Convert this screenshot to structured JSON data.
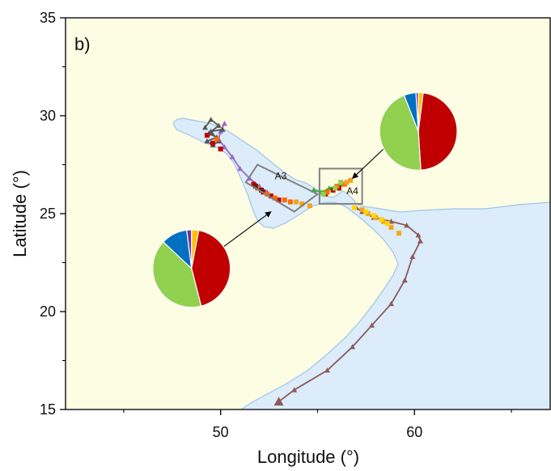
{
  "chart_data": {
    "type": "scatter",
    "panel_label": "b)",
    "xlabel": "Longitude (°)",
    "ylabel": "Latitude (°)",
    "xlim": [
      42,
      67
    ],
    "ylim": [
      15,
      35
    ],
    "x_major_ticks": [
      50,
      60
    ],
    "x_minor_ticks": [
      45,
      55,
      65
    ],
    "y_major_ticks": [
      15,
      20,
      25,
      30,
      35
    ],
    "colors": {
      "land": "#fdfde3",
      "sea": "#dcecfa",
      "coast": "#9cc6ea",
      "box": "#808080",
      "red": "#c00000",
      "green": "#92d050",
      "blue": "#0070c0",
      "purple": "#7030a0",
      "yellow": "#ffc000",
      "orange": "#f4a320"
    },
    "regions": [
      {
        "label": "A3",
        "corners": [
          [
            51.3,
            26.6
          ],
          [
            53.8,
            25.1
          ],
          [
            55.0,
            26.0
          ],
          [
            51.9,
            27.5
          ]
        ]
      },
      {
        "label": "A4",
        "corners": [
          [
            55.1,
            25.5
          ],
          [
            57.3,
            25.5
          ],
          [
            57.3,
            27.3
          ],
          [
            55.1,
            27.3
          ]
        ]
      }
    ],
    "pies": [
      {
        "region": "A3",
        "center": [
          48.5,
          22.2
        ],
        "radius_deg": 2.0,
        "slices": [
          {
            "color": "#ffc000",
            "value": 3
          },
          {
            "color": "#c00000",
            "value": 43
          },
          {
            "color": "#92d050",
            "value": 41
          },
          {
            "color": "#0070c0",
            "value": 11
          },
          {
            "color": "#7030a0",
            "value": 2
          }
        ]
      },
      {
        "region": "A4",
        "center": [
          60.2,
          29.2
        ],
        "radius_deg": 2.0,
        "slices": [
          {
            "color": "#ffc000",
            "value": 2
          },
          {
            "color": "#c00000",
            "value": 47
          },
          {
            "color": "#92d050",
            "value": 45
          },
          {
            "color": "#0070c0",
            "value": 5
          },
          {
            "color": "#7030a0",
            "value": 1
          }
        ]
      }
    ],
    "arrows": [
      {
        "from": [
          50.0,
          23.2
        ],
        "to": [
          52.6,
          25.1
        ]
      },
      {
        "from": [
          58.4,
          28.3
        ],
        "to": [
          56.8,
          26.8
        ]
      }
    ],
    "tracks": [
      {
        "color": "#8c5a5a",
        "marker": "triangle",
        "points": [
          [
            53.0,
            15.4
          ],
          [
            53.8,
            16.0
          ],
          [
            55.5,
            17.0
          ],
          [
            56.8,
            18.2
          ],
          [
            57.8,
            19.3
          ],
          [
            58.8,
            20.4
          ],
          [
            59.5,
            21.6
          ],
          [
            59.9,
            22.8
          ],
          [
            60.3,
            23.6
          ],
          [
            60.2,
            23.9
          ],
          [
            59.6,
            24.4
          ],
          [
            58.8,
            24.6
          ],
          [
            57.9,
            24.8
          ],
          [
            57.3,
            25.1
          ],
          [
            57.0,
            25.3
          ]
        ]
      },
      {
        "color": "#9a6ac8",
        "marker": "triangle",
        "points": [
          [
            50.2,
            29.6
          ],
          [
            50.0,
            29.2
          ],
          [
            49.9,
            28.8
          ],
          [
            50.2,
            28.4
          ],
          [
            50.6,
            27.9
          ],
          [
            51.0,
            27.3
          ],
          [
            51.5,
            26.8
          ],
          [
            52.0,
            26.4
          ],
          [
            52.4,
            26.1
          ]
        ]
      },
      {
        "color": "#555555",
        "marker": "triangle",
        "points": [
          [
            49.2,
            29.4
          ],
          [
            49.5,
            29.8
          ],
          [
            49.9,
            29.5
          ],
          [
            49.4,
            29.1
          ],
          [
            49.8,
            28.9
          ],
          [
            49.3,
            28.7
          ],
          [
            49.6,
            28.5
          ],
          [
            49.9,
            28.7
          ],
          [
            49.5,
            29.2
          ],
          [
            50.1,
            29.3
          ]
        ]
      },
      {
        "color": "#2bb52b",
        "marker": "triangle",
        "points": [
          [
            54.8,
            26.2
          ],
          [
            55.2,
            26.1
          ],
          [
            55.6,
            26.3
          ],
          [
            56.0,
            26.4
          ],
          [
            56.3,
            26.5
          ]
        ]
      }
    ],
    "observations": [
      {
        "color": "#c00000",
        "points": [
          [
            49.3,
            29.0
          ],
          [
            49.6,
            28.6
          ],
          [
            50.0,
            28.3
          ],
          [
            51.7,
            26.5
          ],
          [
            52.2,
            26.1
          ],
          [
            52.6,
            25.9
          ],
          [
            53.0,
            25.7
          ],
          [
            55.4,
            26.0
          ],
          [
            55.8,
            26.2
          ],
          [
            56.1,
            26.3
          ]
        ]
      },
      {
        "color": "#ff6a00",
        "points": [
          [
            49.8,
            28.8
          ],
          [
            51.9,
            26.3
          ],
          [
            52.4,
            26.0
          ],
          [
            52.8,
            25.8
          ],
          [
            53.3,
            25.7
          ],
          [
            53.6,
            25.6
          ],
          [
            55.5,
            26.1
          ],
          [
            56.0,
            26.4
          ],
          [
            56.4,
            26.5
          ]
        ]
      },
      {
        "color": "#f4a320",
        "points": [
          [
            53.9,
            25.6
          ],
          [
            54.2,
            25.5
          ],
          [
            54.6,
            25.4
          ],
          [
            56.5,
            26.6
          ],
          [
            56.7,
            26.7
          ],
          [
            57.3,
            25.2
          ],
          [
            57.6,
            25.0
          ],
          [
            58.0,
            24.8
          ],
          [
            58.4,
            24.6
          ],
          [
            58.8,
            24.3
          ],
          [
            59.2,
            24.0
          ]
        ]
      },
      {
        "color": "#ffd700",
        "points": [
          [
            56.9,
            25.3
          ],
          [
            57.5,
            25.1
          ],
          [
            57.9,
            24.9
          ],
          [
            58.3,
            24.7
          ],
          [
            58.6,
            24.5
          ]
        ]
      },
      {
        "color": "#6b1b1b",
        "points": [
          [
            51.8,
            26.4
          ],
          [
            52.1,
            26.2
          ]
        ]
      },
      {
        "color": "#92d050",
        "points": [
          [
            55.3,
            26.0
          ],
          [
            55.9,
            26.3
          ],
          [
            56.2,
            26.6
          ]
        ]
      }
    ]
  }
}
